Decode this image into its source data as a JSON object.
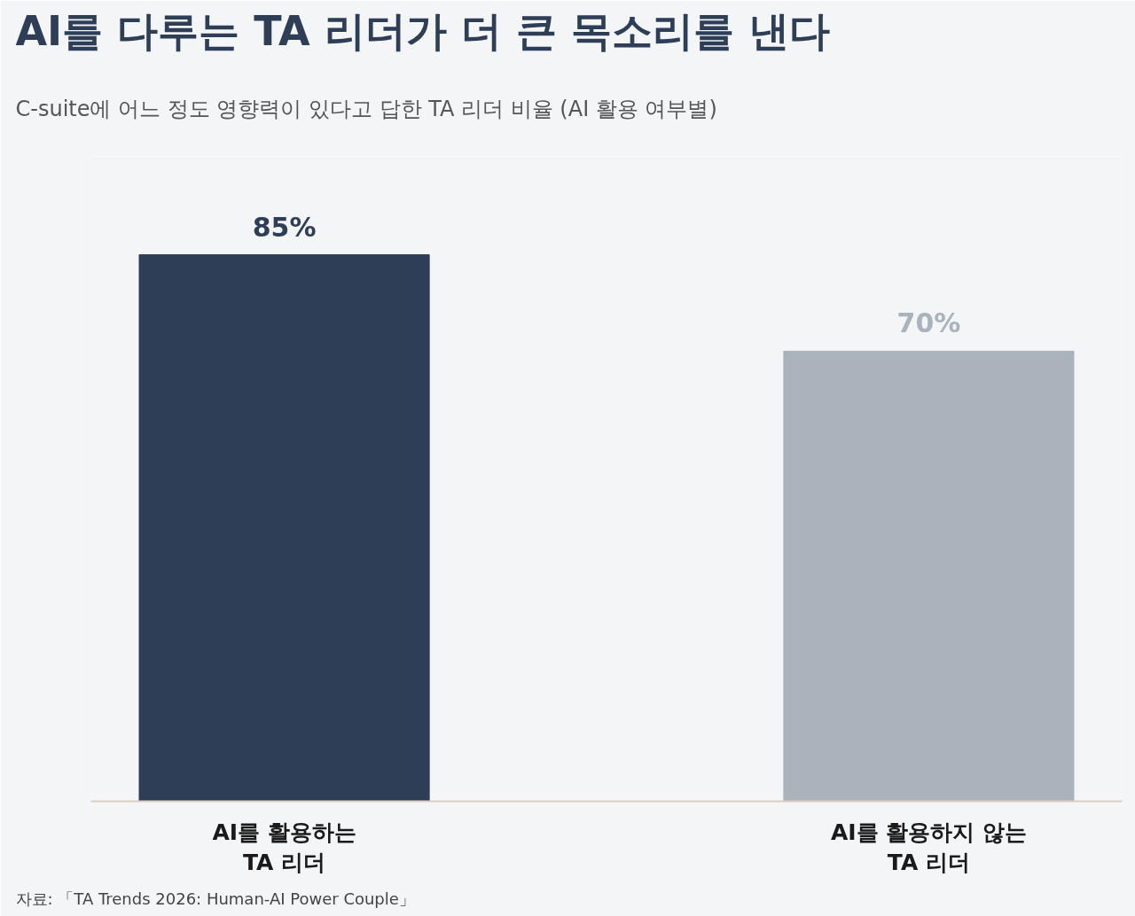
{
  "chart_data": {
    "type": "bar",
    "title": "AI를 다루는 TA 리더가 더 큰 목소리를 낸다",
    "subtitle": "C-suite에 어느 정도 영향력이 있다고 답한 TA 리더 비율 (AI 활용 여부별)",
    "categories": [
      "AI를 활용하는\nTA 리더",
      "AI를 활용하지 않는\nTA 리더"
    ],
    "values": [
      85,
      70
    ],
    "colors": [
      "#2d3e56",
      "#aab3bc"
    ],
    "value_labels": [
      "85%",
      "70%"
    ],
    "annotations": [
      "자료: 「TA Trends 2026: Human-AI Power Couple」"
    ]
  }
}
